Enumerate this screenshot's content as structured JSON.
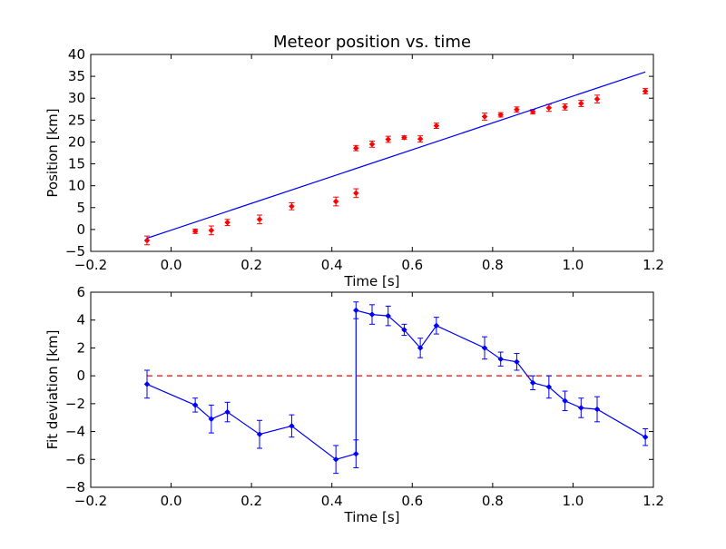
{
  "chart_data": [
    {
      "type": "scatter",
      "title": "Meteor position vs. time",
      "xlabel": "Time [s]",
      "ylabel": "Position [km]",
      "xlim": [
        -0.2,
        1.2
      ],
      "ylim": [
        -5,
        40
      ],
      "xticks": [
        "−0.2",
        "0.0",
        "0.2",
        "0.4",
        "0.6",
        "0.8",
        "1.0",
        "1.2"
      ],
      "yticks": [
        "−5",
        "0",
        "5",
        "10",
        "15",
        "20",
        "25",
        "30",
        "35",
        "40"
      ],
      "grid": false,
      "series": [
        {
          "style": "markers-with-errorbars",
          "color": "#ff0000",
          "points": [
            {
              "x": -0.06,
              "y": -2.5,
              "err": 1.0
            },
            {
              "x": 0.06,
              "y": -0.4,
              "err": 0.5
            },
            {
              "x": 0.1,
              "y": -0.2,
              "err": 1.0
            },
            {
              "x": 0.14,
              "y": 1.6,
              "err": 0.7
            },
            {
              "x": 0.22,
              "y": 2.3,
              "err": 1.0
            },
            {
              "x": 0.3,
              "y": 5.3,
              "err": 0.8
            },
            {
              "x": 0.41,
              "y": 6.4,
              "err": 1.0
            },
            {
              "x": 0.46,
              "y": 8.3,
              "err": 1.0
            },
            {
              "x": 0.46,
              "y": 18.6,
              "err": 0.6
            },
            {
              "x": 0.5,
              "y": 19.5,
              "err": 0.7
            },
            {
              "x": 0.54,
              "y": 20.6,
              "err": 0.7
            },
            {
              "x": 0.58,
              "y": 21.0,
              "err": 0.4
            },
            {
              "x": 0.62,
              "y": 20.7,
              "err": 0.7
            },
            {
              "x": 0.66,
              "y": 23.7,
              "err": 0.6
            },
            {
              "x": 0.78,
              "y": 25.8,
              "err": 0.8
            },
            {
              "x": 0.82,
              "y": 26.2,
              "err": 0.5
            },
            {
              "x": 0.86,
              "y": 27.4,
              "err": 0.6
            },
            {
              "x": 0.9,
              "y": 26.9,
              "err": 0.5
            },
            {
              "x": 0.94,
              "y": 27.8,
              "err": 0.8
            },
            {
              "x": 0.98,
              "y": 28.0,
              "err": 0.7
            },
            {
              "x": 1.02,
              "y": 28.8,
              "err": 0.7
            },
            {
              "x": 1.06,
              "y": 29.8,
              "err": 0.9
            },
            {
              "x": 1.18,
              "y": 31.6,
              "err": 0.6
            }
          ]
        },
        {
          "style": "line",
          "color": "#0000ff",
          "points": [
            {
              "x": -0.06,
              "y": -2.0
            },
            {
              "x": 1.18,
              "y": 36.0
            }
          ]
        }
      ]
    },
    {
      "type": "line",
      "title": "",
      "xlabel": "Time [s]",
      "ylabel": "Fit deviation [km]",
      "xlim": [
        -0.2,
        1.2
      ],
      "ylim": [
        -8,
        6
      ],
      "xticks": [
        "−0.2",
        "0.0",
        "0.2",
        "0.4",
        "0.6",
        "0.8",
        "1.0",
        "1.2"
      ],
      "yticks": [
        "−8",
        "−6",
        "−4",
        "−2",
        "0",
        "2",
        "4",
        "6"
      ],
      "grid": false,
      "reference_line": {
        "y": 0,
        "color": "#ff0000",
        "style": "dashed"
      },
      "series": [
        {
          "style": "line-markers-with-errorbars",
          "color": "#0000ff",
          "points": [
            {
              "x": -0.06,
              "y": -0.6,
              "err": 1.0
            },
            {
              "x": 0.06,
              "y": -2.1,
              "err": 0.5
            },
            {
              "x": 0.1,
              "y": -3.1,
              "err": 1.0
            },
            {
              "x": 0.14,
              "y": -2.6,
              "err": 0.7
            },
            {
              "x": 0.22,
              "y": -4.2,
              "err": 1.0
            },
            {
              "x": 0.3,
              "y": -3.6,
              "err": 0.8
            },
            {
              "x": 0.41,
              "y": -6.0,
              "err": 1.0
            },
            {
              "x": 0.46,
              "y": -5.6,
              "err": 1.0
            },
            {
              "x": 0.46,
              "y": 4.7,
              "err": 0.6
            },
            {
              "x": 0.5,
              "y": 4.4,
              "err": 0.7
            },
            {
              "x": 0.54,
              "y": 4.3,
              "err": 0.7
            },
            {
              "x": 0.58,
              "y": 3.3,
              "err": 0.4
            },
            {
              "x": 0.62,
              "y": 2.0,
              "err": 0.7
            },
            {
              "x": 0.66,
              "y": 3.6,
              "err": 0.6
            },
            {
              "x": 0.78,
              "y": 2.0,
              "err": 0.8
            },
            {
              "x": 0.82,
              "y": 1.2,
              "err": 0.5
            },
            {
              "x": 0.86,
              "y": 1.0,
              "err": 0.6
            },
            {
              "x": 0.9,
              "y": -0.5,
              "err": 0.5
            },
            {
              "x": 0.94,
              "y": -0.8,
              "err": 0.8
            },
            {
              "x": 0.98,
              "y": -1.8,
              "err": 0.7
            },
            {
              "x": 1.02,
              "y": -2.3,
              "err": 0.7
            },
            {
              "x": 1.06,
              "y": -2.4,
              "err": 0.9
            },
            {
              "x": 1.18,
              "y": -4.4,
              "err": 0.6
            }
          ]
        }
      ]
    }
  ]
}
